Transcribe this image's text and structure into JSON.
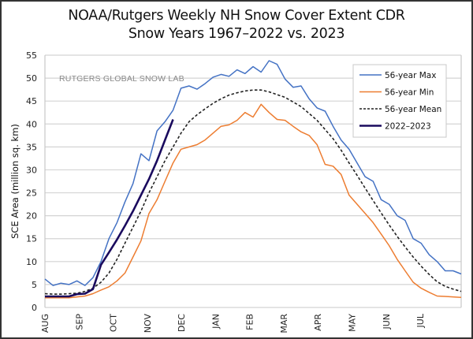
{
  "chart_data": {
    "type": "line",
    "title": "NOAA/Rutgers Weekly NH Snow Cover Extent CDR",
    "subtitle": "Snow Years 1967–2022 vs. 2023",
    "xlabel": "",
    "ylabel": "SCE Area (million sq. km)",
    "ylim": [
      0,
      55
    ],
    "yticks": [
      0,
      5,
      10,
      15,
      20,
      25,
      30,
      35,
      40,
      45,
      50,
      55
    ],
    "xlim_weeks": [
      0,
      52
    ],
    "month_ticks": [
      "AUG",
      "SEP",
      "OCT",
      "NOV",
      "DEC",
      "JAN",
      "FEB",
      "MAR",
      "APR",
      "MAY",
      "JUN",
      "JUL"
    ],
    "grid": true,
    "legend_position": "top-right",
    "annotation": "RUTGERS GLOBAL SNOW LAB",
    "series": [
      {
        "name": "56-year Max",
        "color": "#4472c4",
        "style": "solid",
        "values": [
          6.2,
          4.8,
          5.3,
          5.0,
          5.8,
          4.8,
          6.5,
          10.0,
          15.0,
          18.5,
          23.0,
          27.0,
          33.5,
          32.0,
          38.5,
          40.5,
          43.0,
          47.8,
          48.3,
          47.6,
          48.8,
          50.2,
          50.8,
          50.4,
          51.8,
          51.0,
          52.5,
          51.3,
          53.8,
          53.0,
          49.8,
          48.0,
          48.3,
          45.5,
          43.5,
          42.8,
          39.5,
          36.5,
          34.5,
          31.5,
          28.5,
          27.5,
          23.5,
          22.5,
          20.0,
          19.0,
          15.0,
          14.0,
          11.5,
          10.0,
          8.0,
          8.0,
          7.3
        ]
      },
      {
        "name": "56-year Min",
        "color": "#ed7d31",
        "style": "solid",
        "values": [
          2.1,
          2.1,
          2.1,
          2.1,
          2.3,
          2.5,
          3.0,
          3.8,
          4.5,
          5.8,
          7.5,
          11.0,
          14.5,
          20.5,
          23.5,
          27.5,
          31.5,
          34.5,
          35.0,
          35.5,
          36.5,
          38.0,
          39.5,
          39.8,
          40.8,
          42.5,
          41.5,
          44.3,
          42.5,
          41.0,
          40.8,
          39.5,
          38.3,
          37.5,
          35.5,
          31.2,
          30.8,
          29.0,
          24.5,
          22.5,
          20.5,
          18.5,
          16.0,
          13.5,
          10.5,
          8.0,
          5.5,
          4.2,
          3.3,
          2.5,
          2.4,
          2.3,
          2.2
        ]
      },
      {
        "name": "56-year Mean",
        "color": "#222222",
        "style": "dashed",
        "values": [
          3.0,
          2.9,
          2.9,
          3.0,
          3.1,
          3.5,
          4.2,
          5.5,
          7.5,
          10.5,
          14.0,
          17.5,
          21.0,
          25.0,
          28.5,
          32.0,
          35.0,
          38.0,
          40.5,
          42.0,
          43.3,
          44.5,
          45.5,
          46.3,
          46.8,
          47.2,
          47.4,
          47.4,
          47.0,
          46.4,
          45.8,
          44.8,
          43.8,
          42.3,
          40.8,
          38.8,
          36.8,
          34.3,
          31.5,
          28.8,
          26.0,
          23.3,
          20.6,
          18.0,
          15.5,
          13.2,
          11.0,
          9.0,
          7.2,
          5.6,
          4.6,
          4.0,
          3.5
        ]
      },
      {
        "name": "2022–2023",
        "color": "#1a0a5e",
        "style": "solid",
        "values": [
          2.4,
          2.4,
          2.4,
          2.4,
          2.9,
          3.0,
          4.0,
          9.3,
          12.0,
          14.8,
          17.8,
          21.0,
          24.5,
          28.0,
          32.0,
          36.5,
          41.0
        ]
      }
    ]
  }
}
